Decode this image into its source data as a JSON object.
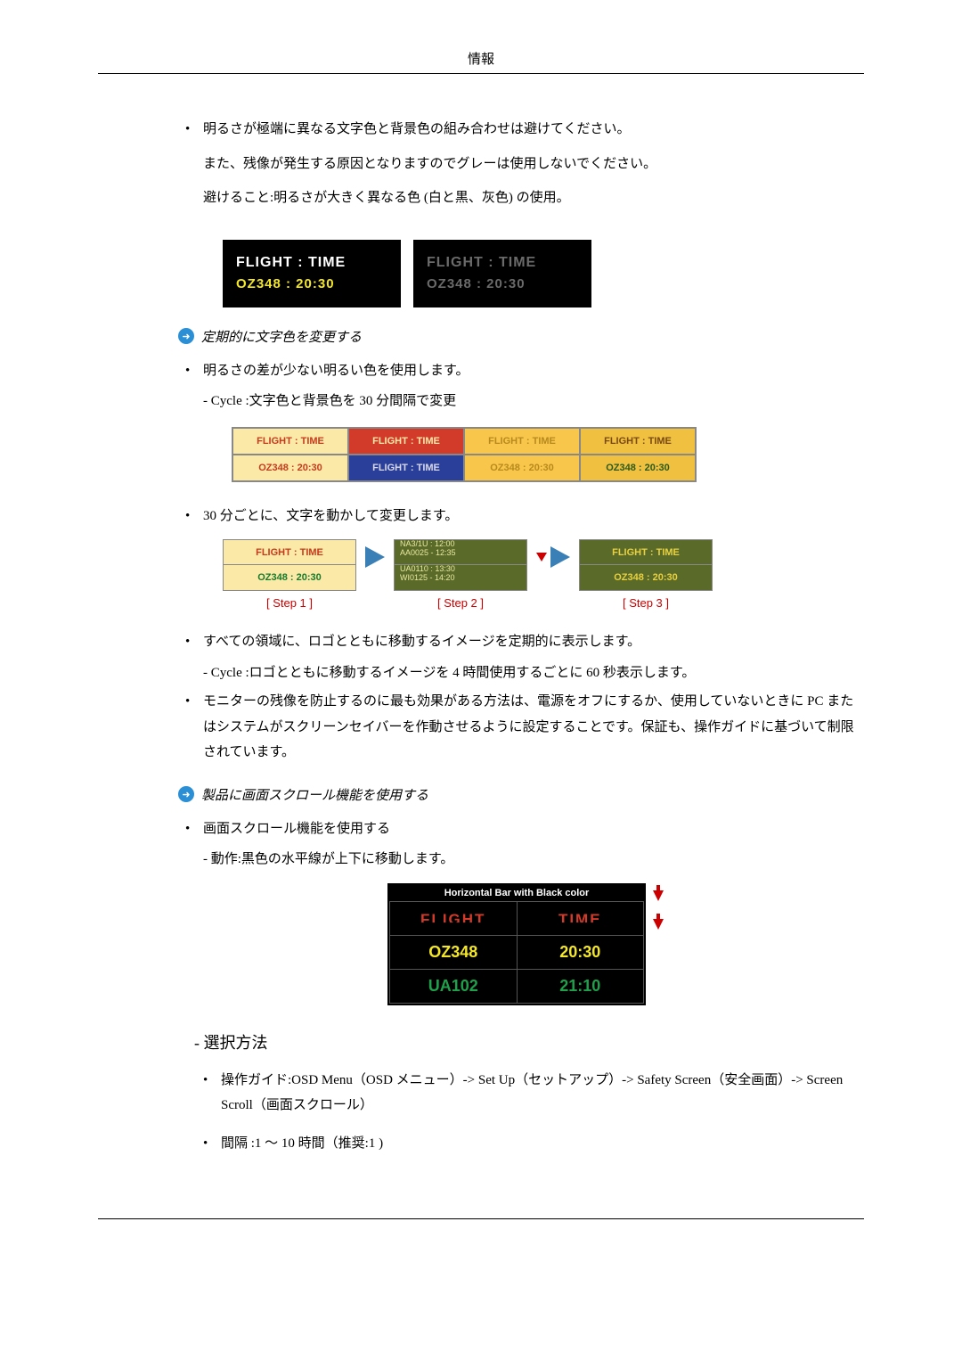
{
  "header": {
    "title": "情報"
  },
  "section1": {
    "bullet1_line1": "明るさが極端に異なる文字色と背景色の組み合わせは避けてください。",
    "bullet1_line2": "また、残像が発生する原因となりますのでグレーは使用しないでください。",
    "bullet1_line3": "避けること:明るさが大きく異なる色 (白と黒、灰色) の使用。"
  },
  "fig1": {
    "panels": [
      {
        "line1": "FLIGHT : TIME",
        "line2": "OZ348   : 20:30",
        "c1": "#ffffff",
        "c2": "#f4e727"
      },
      {
        "line1": "FLIGHT : TIME",
        "line2": "OZ348   : 20:30",
        "c1": "#6a6a6a",
        "c2": "#6a6a6a"
      }
    ]
  },
  "heading2": "定期的に文字色を変更する",
  "bullet2": "明るさの差が少ない明るい色を使用します。",
  "bullet2_sub": "- Cycle :文字色と背景色を 30 分間隔で変更",
  "fig2": {
    "label_ft": "FLIGHT : TIME",
    "label_oz": "OZ348  : 20:30",
    "cells": [
      {
        "text": "FLIGHT : TIME",
        "bg": "#fbe9a8",
        "fg": "#c63a1e"
      },
      {
        "text": "FLIGHT : TIME",
        "bg": "#d23a2a",
        "fg": "#fde9a8"
      },
      {
        "text": "FLIGHT : TIME",
        "bg": "#f7c64a",
        "fg": "#b88a1e"
      },
      {
        "text": "FLIGHT : TIME",
        "bg": "#f0c040",
        "fg": "#7a4a12"
      },
      {
        "text": "OZ348  : 20:30",
        "bg": "#fbe9a8",
        "fg": "#c63a1e"
      },
      {
        "text": "FLIGHT : TIME",
        "bg": "#2a3f9a",
        "fg": "#d8d8e8"
      },
      {
        "text": "OZ348  : 20:30",
        "bg": "#f7c64a",
        "fg": "#b88a1e"
      },
      {
        "text": "OZ348  : 20:30",
        "bg": "#f0c040",
        "fg": "#2a5a1a"
      }
    ]
  },
  "bullet3": "30 分ごとに、文字を動かして変更します。",
  "fig3": {
    "steps": [
      {
        "label": "[ Step 1 ]",
        "cells": [
          {
            "text": "FLIGHT : TIME",
            "bg": "#fbe9a8",
            "fg": "#c63a1e"
          },
          {
            "text": "OZ348  : 20:30",
            "bg": "#fbe9a8",
            "fg": "#177a2a"
          }
        ]
      },
      {
        "label": "[ Step 2 ]",
        "cells": [
          {
            "top": "NA3/1U  :  12:00",
            "bot": "AA0025  -  12:35",
            "bg": "#5a6a28",
            "fg": "#e8e8a0"
          },
          {
            "top": "UA0110  :  13:30",
            "bot": "WI0125  -  14:20",
            "bg": "#5a6a28",
            "fg": "#e8e8a0"
          }
        ]
      },
      {
        "label": "[ Step 3 ]",
        "cells": [
          {
            "text": "FLIGHT : TIME",
            "bg": "#5a6a28",
            "fg": "#e8d040"
          },
          {
            "text": "OZ348  : 20:30",
            "bg": "#5a6a28",
            "fg": "#e8d040"
          }
        ]
      }
    ]
  },
  "bullet4": "すべての領域に、ロゴとともに移動するイメージを定期的に表示します。",
  "bullet4_sub": "- Cycle :ロゴとともに移動するイメージを 4 時間使用するごとに 60 秒表示します。",
  "bullet5": "モニターの残像を防止するのに最も効果がある方法は、電源をオフにするか、使用していないときに PC またはシステムがスクリーンセイバーを作動させるように設定することです。保証も、操作ガイドに基づいて制限されています。",
  "heading3": "製品に画面スクロール機能を使用する",
  "bullet6": "画面スクロール機能を使用する",
  "bullet6_sub": "- 動作:黒色の水平線が上下に移動します。",
  "fig4": {
    "title": "Horizontal Bar with Black color",
    "rows": [
      {
        "c1": "FLIGHT",
        "c2": "TIME",
        "fg": "#d23a2a",
        "style": "split"
      },
      {
        "c1": "OZ348",
        "c2": "20:30",
        "fg": "#f4e727"
      },
      {
        "c1": "UA102",
        "c2": "21:10",
        "fg": "#1fa04a"
      }
    ]
  },
  "sel_heading": "- 選択方法",
  "sel_bullet1": "操作ガイド:OSD Menu（OSD メニュー）-> Set Up（セットアップ）-> Safety Screen（安全画面）-> Screen Scroll（画面スクロール）",
  "sel_bullet2": "間隔 :1 ～ 10 時間（推奨:1 )"
}
